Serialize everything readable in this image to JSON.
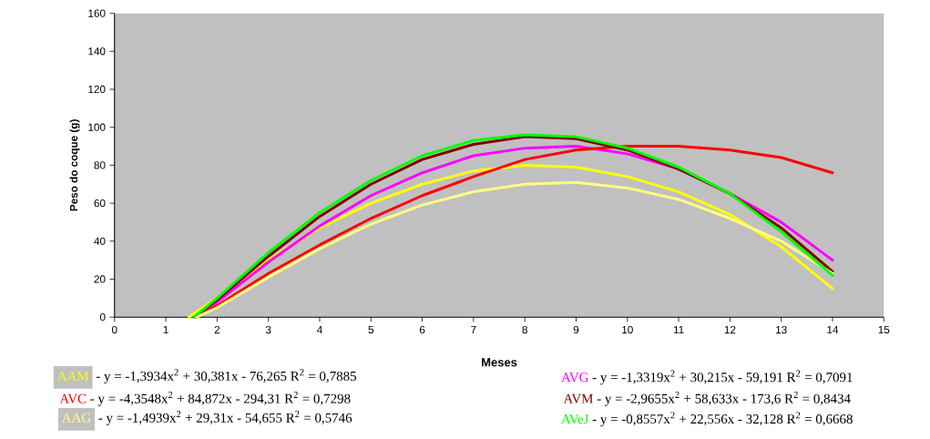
{
  "chart_data": {
    "type": "line",
    "xlabel": "Meses",
    "ylabel": "Peso do coque (g)",
    "xlim": [
      0,
      15
    ],
    "xticks": [
      0,
      1,
      2,
      3,
      4,
      5,
      6,
      7,
      8,
      9,
      10,
      11,
      12,
      13,
      14,
      15
    ],
    "ylim": [
      0,
      160
    ],
    "yticks": [
      0,
      20,
      40,
      60,
      80,
      100,
      120,
      140,
      160
    ],
    "marker": "none",
    "line_style": "solid",
    "legend": "bottom",
    "series": [
      {
        "name": "AAM",
        "color": "#ffff00",
        "x": [
          1.45,
          2,
          3,
          4,
          5,
          6,
          7,
          8,
          9,
          10,
          11,
          12,
          13,
          14
        ],
        "values": [
          0,
          10,
          30,
          47,
          60,
          70,
          77,
          80,
          79,
          74,
          66,
          54,
          37,
          15
        ]
      },
      {
        "name": "AVG",
        "color": "#ff00ff",
        "x": [
          1.6,
          2,
          3,
          4,
          5,
          6,
          7,
          8,
          9,
          10,
          11,
          12,
          13,
          14
        ],
        "values": [
          0,
          8,
          29,
          48,
          64,
          76,
          85,
          89,
          90,
          86,
          78,
          65,
          50,
          30
        ]
      },
      {
        "name": "AVC",
        "color": "#ff0000",
        "x": [
          1.6,
          2,
          3,
          4,
          5,
          6,
          7,
          8,
          9,
          10,
          11,
          12,
          13,
          14
        ],
        "values": [
          0,
          6,
          23,
          38,
          52,
          64,
          74,
          83,
          88,
          90,
          90,
          88,
          84,
          76
        ]
      },
      {
        "name": "AVM",
        "color": "#800000",
        "x": [
          1.55,
          2,
          3,
          4,
          5,
          6,
          7,
          8,
          9,
          10,
          11,
          12,
          13,
          14
        ],
        "values": [
          0,
          9,
          32,
          53,
          70,
          83,
          91,
          95,
          94,
          88,
          78,
          65,
          47,
          24
        ]
      },
      {
        "name": "AAG",
        "color": "#ffff80",
        "x": [
          1.6,
          2,
          3,
          4,
          5,
          6,
          7,
          8,
          9,
          10,
          11,
          12,
          13,
          14
        ],
        "values": [
          0,
          5,
          21,
          36,
          49,
          59,
          66,
          70,
          71,
          68,
          62,
          52,
          40,
          23
        ]
      },
      {
        "name": "AVeJ",
        "color": "#00ff00",
        "x": [
          1.55,
          2,
          3,
          4,
          5,
          6,
          7,
          8,
          9,
          10,
          11,
          12,
          13,
          14
        ],
        "values": [
          0,
          10,
          34,
          55,
          72,
          85,
          93,
          96,
          95,
          89,
          79,
          65,
          45,
          22
        ]
      }
    ],
    "annotations": [
      " - y = -1,3934x$^{2}$ + 30,381x - 76,265 R$^{2}$ = 0,7885",
      " - y = -1,3319x$^{2}$ + 30,215x - 59,191 R$^{2}$ = 0,7091",
      " - y = -4,3548x$^{2}$ + 84,872x - 294,31 R$^{2}$ = 0,7298",
      " - y = -2,9655x$^{2}$ + 58,633x - 173,6 R$^{2}$ = 0,8434",
      " - y = -1,4939x$^{2}$ + 29,31x - 54,655 R$^{2}$ = 0,5746",
      " - y = -0,8557x$^{2}$ + 22,556x - 32,128 R$^{2}$ = 0,6668"
    ]
  }
}
